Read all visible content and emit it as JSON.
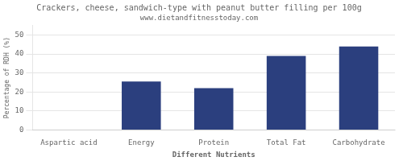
{
  "chart_data": {
    "type": "bar",
    "title": "Crackers, cheese, sandwich-type with peanut butter filling per 100g",
    "subtitle": "www.dietandfitnesstoday.com",
    "xlabel": "Different Nutrients",
    "ylabel": "Percentage of RDH (%)",
    "categories": [
      "Aspartic acid",
      "Energy",
      "Protein",
      "Total Fat",
      "Carbohydrate"
    ],
    "values": [
      0,
      25.5,
      22,
      39,
      44
    ],
    "color": "#2b3f7e",
    "ylim": [
      0,
      55
    ],
    "yticks": [
      0,
      10,
      20,
      30,
      40,
      50
    ],
    "grid": true
  }
}
